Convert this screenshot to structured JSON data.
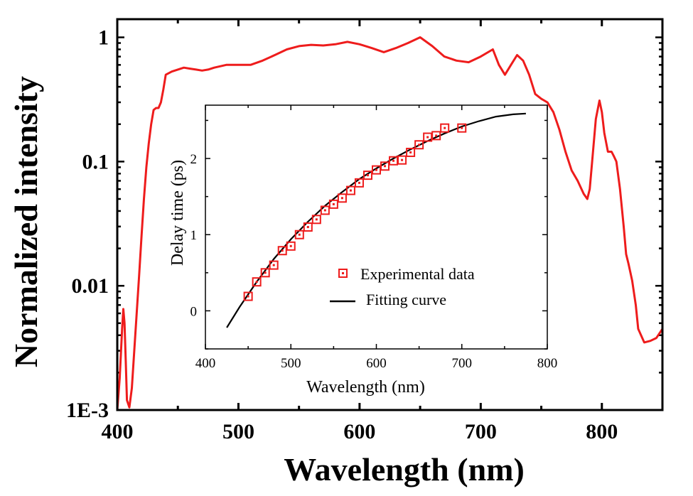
{
  "chart_data": [
    {
      "type": "line",
      "xlabel": "Wavelength (nm)",
      "ylabel": "Normalized intensity",
      "xlim": [
        400,
        850
      ],
      "ylim": [
        0.001,
        1.4
      ],
      "yscale": "log",
      "x_ticks": [
        400,
        500,
        600,
        700,
        800
      ],
      "y_ticks": [
        {
          "value": 1,
          "label": "1"
        },
        {
          "value": 0.1,
          "label": "0.1"
        },
        {
          "value": 0.01,
          "label": "0.01"
        },
        {
          "value": 0.001,
          "label": "1E-3"
        }
      ],
      "line_color": "#ee1c1c",
      "series": [
        {
          "x": [
            400,
            402,
            404,
            405,
            406,
            407,
            408,
            410,
            412,
            414,
            416,
            418,
            420,
            422,
            424,
            426,
            428,
            430,
            432,
            434,
            436,
            438,
            440,
            445,
            450,
            455,
            460,
            465,
            470,
            475,
            480,
            490,
            500,
            510,
            520,
            530,
            540,
            550,
            560,
            570,
            580,
            590,
            600,
            610,
            620,
            630,
            640,
            650,
            660,
            670,
            680,
            690,
            700,
            710,
            715,
            720,
            725,
            730,
            735,
            740,
            745,
            750,
            755,
            760,
            765,
            770,
            775,
            780,
            785,
            788,
            790,
            792,
            795,
            798,
            800,
            802,
            805,
            808,
            810,
            812,
            815,
            818,
            820,
            822,
            825,
            828,
            830,
            835,
            840,
            845,
            850
          ],
          "y": [
            0.0009,
            0.0018,
            0.0045,
            0.0065,
            0.005,
            0.0025,
            0.0012,
            0.00105,
            0.0015,
            0.003,
            0.006,
            0.012,
            0.025,
            0.05,
            0.09,
            0.14,
            0.2,
            0.26,
            0.27,
            0.27,
            0.3,
            0.38,
            0.5,
            0.53,
            0.55,
            0.57,
            0.56,
            0.55,
            0.54,
            0.55,
            0.57,
            0.6,
            0.6,
            0.6,
            0.65,
            0.72,
            0.8,
            0.85,
            0.87,
            0.86,
            0.88,
            0.92,
            0.88,
            0.82,
            0.76,
            0.82,
            0.9,
            1.0,
            0.85,
            0.7,
            0.65,
            0.63,
            0.7,
            0.8,
            0.6,
            0.5,
            0.6,
            0.72,
            0.65,
            0.5,
            0.35,
            0.32,
            0.3,
            0.25,
            0.18,
            0.12,
            0.085,
            0.07,
            0.055,
            0.05,
            0.06,
            0.1,
            0.22,
            0.31,
            0.25,
            0.17,
            0.12,
            0.12,
            0.11,
            0.1,
            0.06,
            0.03,
            0.018,
            0.015,
            0.011,
            0.007,
            0.0045,
            0.0035,
            0.0036,
            0.0038,
            0.0045
          ]
        }
      ]
    },
    {
      "type": "scatter",
      "xlabel": "Wavelength (nm)",
      "ylabel": "Delay time (ps)",
      "xlim": [
        400,
        800
      ],
      "ylim": [
        -0.5,
        2.7
      ],
      "x_ticks": [
        400,
        500,
        600,
        700,
        800
      ],
      "y_ticks": [
        0,
        1,
        2
      ],
      "legend_position": "bottom-center",
      "series": [
        {
          "name": "Experimental data",
          "marker": "square",
          "color": "#ee1c1c",
          "x": [
            450,
            460,
            470,
            480,
            490,
            500,
            510,
            520,
            530,
            540,
            550,
            560,
            570,
            580,
            590,
            600,
            610,
            620,
            630,
            640,
            650,
            660,
            670,
            680,
            700
          ],
          "y": [
            0.19,
            0.38,
            0.5,
            0.6,
            0.79,
            0.85,
            1.0,
            1.1,
            1.2,
            1.32,
            1.4,
            1.48,
            1.58,
            1.68,
            1.78,
            1.85,
            1.9,
            1.97,
            1.98,
            2.08,
            2.18,
            2.28,
            2.3,
            2.4,
            2.4
          ]
        },
        {
          "name": "Fitting curve",
          "color": "#000000",
          "x": [
            425,
            440,
            460,
            480,
            500,
            520,
            540,
            560,
            580,
            600,
            620,
            640,
            660,
            680,
            700,
            720,
            740,
            760,
            775
          ],
          "y": [
            -0.22,
            0.05,
            0.38,
            0.68,
            0.94,
            1.17,
            1.38,
            1.56,
            1.73,
            1.87,
            2.0,
            2.12,
            2.23,
            2.33,
            2.42,
            2.49,
            2.55,
            2.58,
            2.59
          ]
        }
      ]
    }
  ]
}
